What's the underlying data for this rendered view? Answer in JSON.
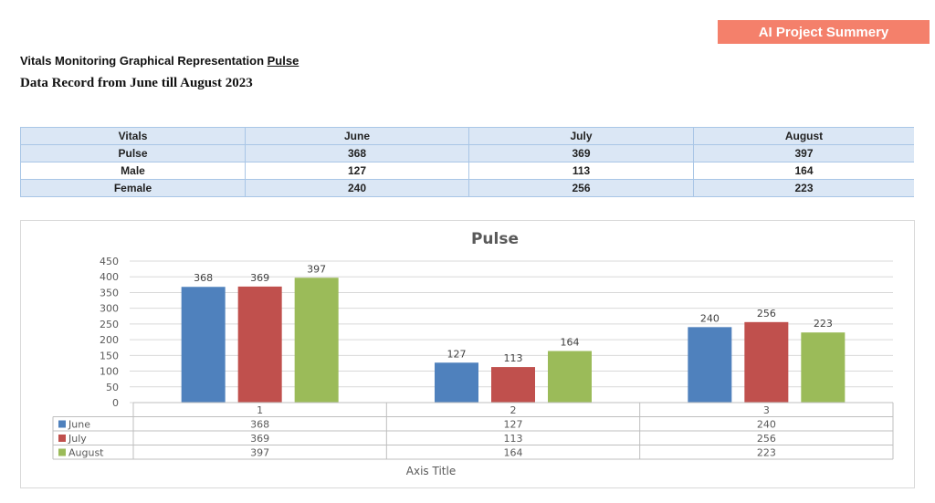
{
  "header": {
    "badge": "AI Project Summery",
    "title_prefix": "Vitals Monitoring Graphical Representation ",
    "title_underlined": "Pulse",
    "subtitle": "Data Record from June till August 2023"
  },
  "table": {
    "headers": [
      "Vitals",
      "June",
      "July",
      "August"
    ],
    "rows": [
      [
        "Pulse",
        "368",
        "369",
        "397"
      ],
      [
        "Male",
        "127",
        "113",
        "164"
      ],
      [
        "Female",
        "240",
        "256",
        "223"
      ]
    ]
  },
  "chart_data": {
    "type": "bar",
    "title": "Pulse",
    "xlabel": "Axis Title",
    "ylabel": "",
    "categories": [
      "1",
      "2",
      "3"
    ],
    "ylim": [
      0,
      450
    ],
    "yticks": [
      0,
      50,
      100,
      150,
      200,
      250,
      300,
      350,
      400,
      450
    ],
    "grid": true,
    "legend": "data-table-left",
    "series": [
      {
        "name": "June",
        "color": "#4f81bd",
        "values": [
          368,
          127,
          240
        ]
      },
      {
        "name": "July",
        "color": "#c0504d",
        "values": [
          369,
          113,
          256
        ]
      },
      {
        "name": "August",
        "color": "#9bbb59",
        "values": [
          397,
          164,
          223
        ]
      }
    ]
  }
}
